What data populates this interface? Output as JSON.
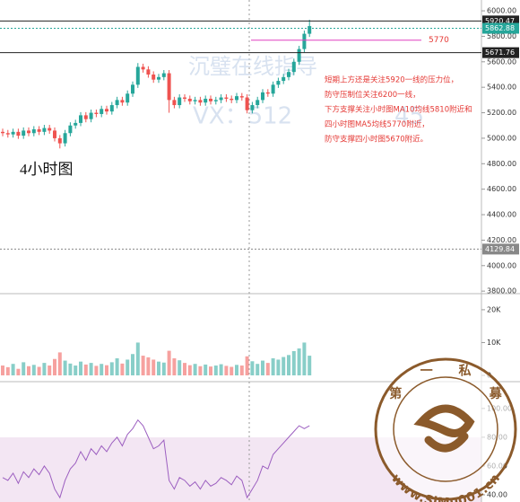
{
  "chart_data": [
    {
      "type": "candlestick",
      "title": "4小时图",
      "open": [
        5050,
        5040,
        5030,
        5050,
        5020,
        5060,
        5040,
        5070,
        5050,
        5080,
        5060,
        5000,
        4960,
        5040,
        5100,
        5120,
        5180,
        5150,
        5200,
        5190,
        5230,
        5210,
        5260,
        5300,
        5280,
        5350,
        5420,
        5560,
        5540,
        5500,
        5460,
        5480,
        5510,
        5300,
        5260,
        5320,
        5310,
        5290,
        5300,
        5280,
        5310,
        5290,
        5300,
        5320,
        5310,
        5300,
        5330,
        5320,
        5220,
        5260,
        5300,
        5360,
        5350,
        5420,
        5450,
        5480,
        5520,
        5600,
        5700,
        5820
      ],
      "high": [
        5075,
        5065,
        5075,
        5075,
        5085,
        5085,
        5095,
        5095,
        5105,
        5105,
        5085,
        5025,
        5065,
        5125,
        5145,
        5205,
        5205,
        5225,
        5225,
        5255,
        5255,
        5285,
        5325,
        5325,
        5375,
        5445,
        5590,
        5585,
        5565,
        5525,
        5505,
        5535,
        5535,
        5325,
        5345,
        5345,
        5335,
        5325,
        5325,
        5335,
        5335,
        5325,
        5345,
        5345,
        5335,
        5355,
        5355,
        5345,
        5285,
        5325,
        5385,
        5385,
        5445,
        5475,
        5505,
        5545,
        5625,
        5725,
        5845,
        5930
      ],
      "low": [
        5015,
        5005,
        5005,
        4995,
        4995,
        5015,
        5015,
        5025,
        5025,
        5035,
        4975,
        4920,
        4935,
        5015,
        5075,
        5095,
        5125,
        5125,
        5165,
        5165,
        5185,
        5185,
        5235,
        5255,
        5255,
        5325,
        5395,
        5515,
        5475,
        5435,
        5435,
        5455,
        5200,
        5235,
        5235,
        5285,
        5265,
        5265,
        5255,
        5255,
        5265,
        5265,
        5275,
        5285,
        5275,
        5275,
        5295,
        5195,
        5195,
        5235,
        5275,
        5325,
        5325,
        5395,
        5425,
        5455,
        5495,
        5575,
        5675,
        5795
      ],
      "close": [
        5040,
        5030,
        5050,
        5020,
        5060,
        5040,
        5070,
        5050,
        5080,
        5060,
        5000,
        4960,
        5040,
        5100,
        5120,
        5180,
        5150,
        5200,
        5190,
        5230,
        5210,
        5260,
        5300,
        5280,
        5350,
        5420,
        5560,
        5540,
        5500,
        5460,
        5480,
        5510,
        5300,
        5260,
        5320,
        5310,
        5290,
        5300,
        5280,
        5310,
        5290,
        5300,
        5320,
        5310,
        5300,
        5330,
        5320,
        5220,
        5260,
        5300,
        5360,
        5350,
        5420,
        5450,
        5480,
        5520,
        5600,
        5700,
        5820,
        5880
      ],
      "up_color": "#26a69a",
      "down_color": "#ef5350",
      "ylim": [
        3780,
        6085
      ],
      "yticks": [
        {
          "value": 3800,
          "label": "3800.00"
        },
        {
          "value": 4000,
          "label": "4000.00"
        },
        {
          "value": 4200,
          "label": "4200.00"
        },
        {
          "value": 4400,
          "label": "4400.00"
        },
        {
          "value": 4600,
          "label": "4600.00"
        },
        {
          "value": 4800,
          "label": "4800.00"
        },
        {
          "value": 5000,
          "label": "5000.00"
        },
        {
          "value": 5200,
          "label": "5200.00"
        },
        {
          "value": 5400,
          "label": "5400.00"
        },
        {
          "value": 5600,
          "label": "5600.00"
        },
        {
          "value": 5800,
          "label": "5800.00"
        },
        {
          "value": 6000,
          "label": "6000.00"
        }
      ],
      "price_lines": [
        {
          "value": 5920.47,
          "color": "#222222",
          "style": "solid"
        },
        {
          "value": 5862.88,
          "color": "#26a69a",
          "style": "dotted"
        },
        {
          "value": 5671.76,
          "color": "#222222",
          "style": "solid"
        },
        {
          "value": 4129.84,
          "color": "#888888",
          "style": "dotted"
        }
      ],
      "level": {
        "value": 5770,
        "color": "#e040c0"
      },
      "annotations": [
        "短期上方还是关注5920一线的压力位，",
        "防守压制位关注6200一线，",
        "下方支撑关注小时图MA10均线5810附近和",
        "四小时图MA5均线5770附近，",
        "防守支撑四小时图5670附近。"
      ]
    },
    {
      "type": "bar",
      "values": [
        3000,
        2500,
        3500,
        2000,
        4000,
        2800,
        3200,
        2600,
        3800,
        3000,
        5000,
        7000,
        4500,
        3600,
        3000,
        4200,
        3300,
        3800,
        2900,
        3500,
        3100,
        4000,
        5200,
        3600,
        4800,
        6500,
        10000,
        6000,
        5500,
        4800,
        4200,
        3900,
        7500,
        5200,
        4600,
        3800,
        3100,
        3500,
        2800,
        3300,
        2700,
        3000,
        3400,
        2900,
        2600,
        3200,
        3000,
        5800,
        4300,
        3500,
        4500,
        3800,
        5200,
        4800,
        5600,
        6200,
        7400,
        8200,
        10000,
        6000
      ],
      "ylim": [
        0,
        24900
      ],
      "yticks": [
        0,
        {
          "value": 10000,
          "label": "10K"
        },
        {
          "value": 20000,
          "label": "20K"
        }
      ]
    },
    {
      "type": "line",
      "color": "#9c5fc0",
      "values": [
        52,
        50,
        55,
        48,
        56,
        52,
        58,
        54,
        60,
        55,
        44,
        38,
        50,
        58,
        62,
        70,
        64,
        72,
        68,
        74,
        70,
        76,
        80,
        74,
        82,
        86,
        92,
        88,
        80,
        72,
        74,
        78,
        50,
        44,
        52,
        50,
        46,
        49,
        44,
        50,
        46,
        48,
        52,
        50,
        47,
        53,
        50,
        38,
        44,
        50,
        60,
        58,
        68,
        72,
        76,
        80,
        84,
        88,
        86,
        88
      ],
      "ylim": [
        35,
        118
      ],
      "yticks": [
        {
          "value": 40,
          "label": "40.00"
        },
        {
          "value": 60,
          "label": "60.00"
        },
        {
          "value": 80,
          "label": "80.00"
        },
        {
          "value": 100,
          "label": "100.00"
        }
      ]
    }
  ],
  "watermark": {
    "text1": "沉璧在线指导",
    "text2": "VX：512",
    "text3": "45",
    "logo_top": [
      "第",
      "一",
      "私",
      "募"
    ],
    "logo_url": "www.SiMu001.cn"
  }
}
